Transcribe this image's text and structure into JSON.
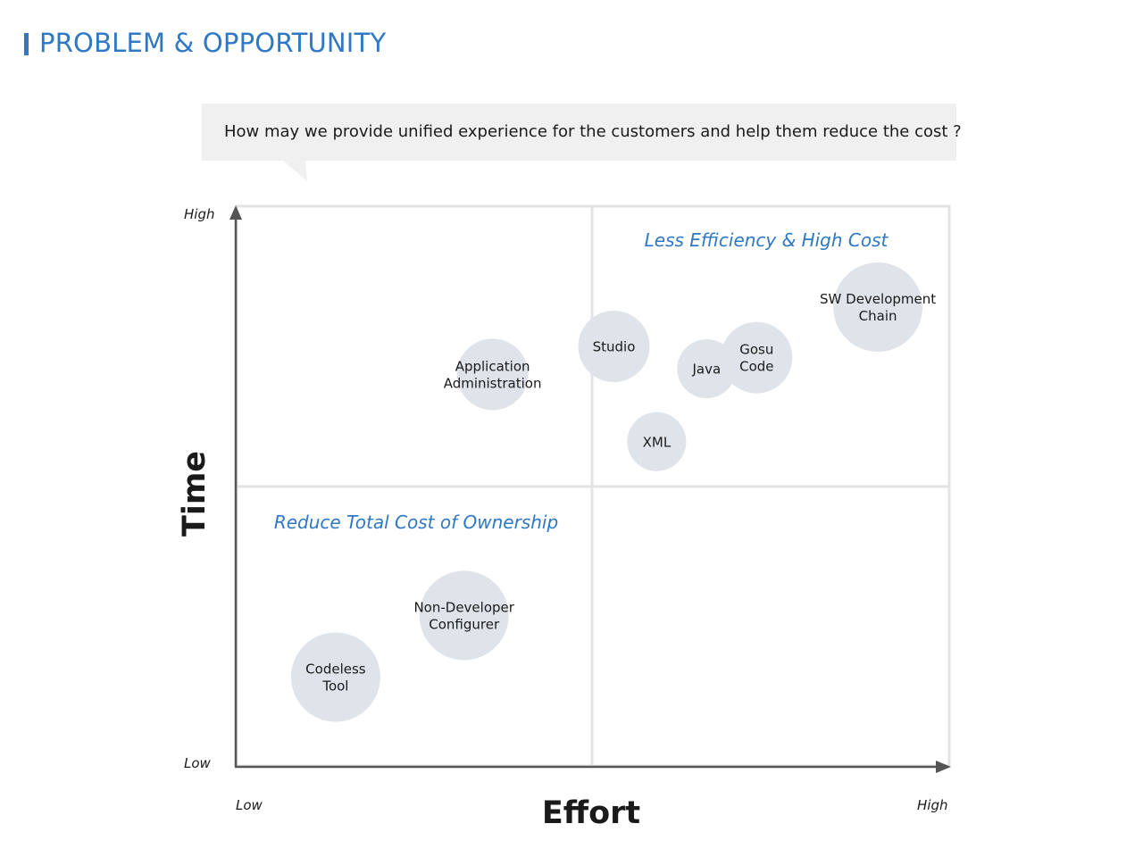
{
  "page": {
    "title": "PROBLEM & OPPORTUNITY",
    "accent_color": "#2f78c4"
  },
  "question": {
    "text": "How may we provide unified experience for the customers and help them reduce the cost  ?"
  },
  "axes": {
    "y_label": "Time",
    "x_label": "Effort",
    "y_high": "High",
    "y_low": "Low",
    "x_low": "Low",
    "x_high": "High"
  },
  "quadrant_labels": {
    "top_right": "Less Efficiency & High Cost",
    "bottom_left": "Reduce Total Cost of Ownership",
    "color": "#2f78c4"
  },
  "bubbles": [
    {
      "id": "application-administration",
      "lines": [
        "Application",
        "Administration"
      ],
      "effort": 0.36,
      "time": 0.7,
      "size": "medium"
    },
    {
      "id": "studio",
      "lines": [
        "Studio"
      ],
      "effort": 0.53,
      "time": 0.75,
      "size": "medium"
    },
    {
      "id": "java",
      "lines": [
        "Java"
      ],
      "effort": 0.66,
      "time": 0.71,
      "size": "small"
    },
    {
      "id": "gosu-code",
      "lines": [
        "Gosu",
        "Code"
      ],
      "effort": 0.73,
      "time": 0.73,
      "size": "medium"
    },
    {
      "id": "sw-development-chain",
      "lines": [
        "SW Development",
        "Chain"
      ],
      "effort": 0.9,
      "time": 0.82,
      "size": "large"
    },
    {
      "id": "xml",
      "lines": [
        "XML"
      ],
      "effort": 0.59,
      "time": 0.58,
      "size": "small"
    },
    {
      "id": "non-developer-configurer",
      "lines": [
        "Non-Developer",
        "Configurer"
      ],
      "effort": 0.32,
      "time": 0.27,
      "size": "large"
    },
    {
      "id": "codeless-tool",
      "lines": [
        "Codeless",
        "Tool"
      ],
      "effort": 0.14,
      "time": 0.16,
      "size": "large"
    }
  ],
  "colors": {
    "bubble_fill": "#dfe4ea",
    "grid": "#e3e3e3",
    "axis": "#555555",
    "text": "#1a1a1a"
  }
}
